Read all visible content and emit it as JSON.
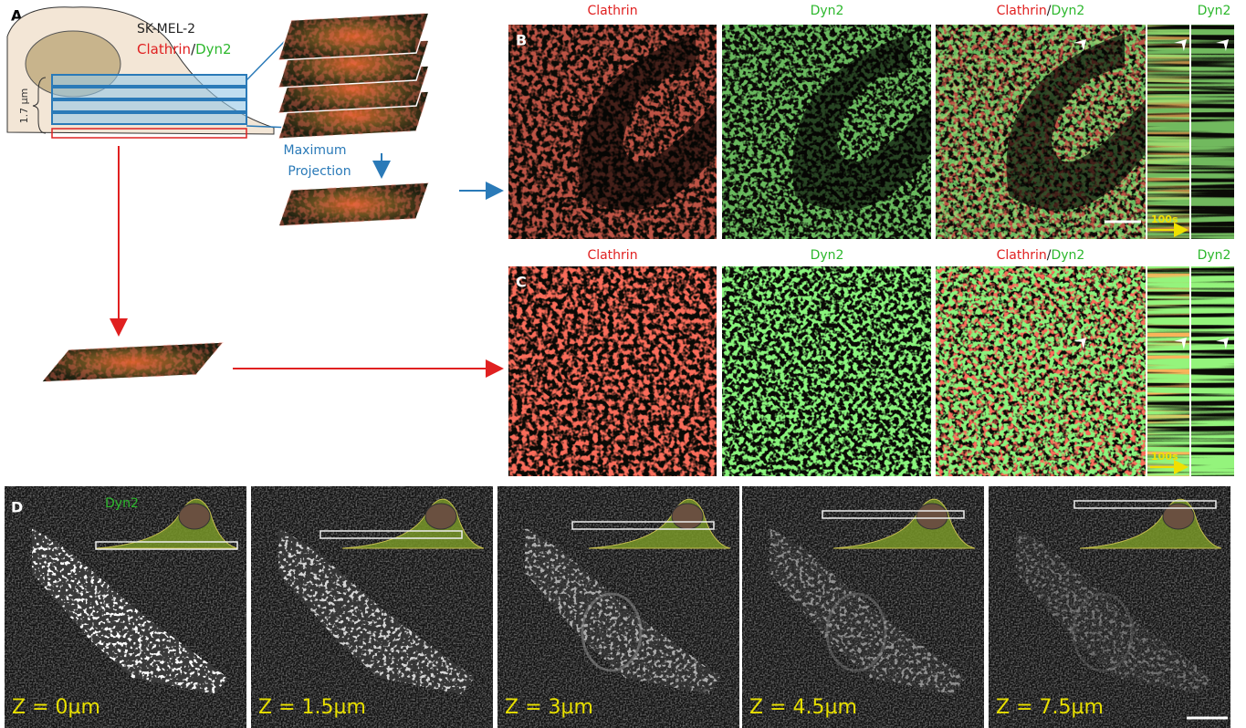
{
  "panel_a": {
    "label": "A",
    "cell_line": "SK-MEL-2",
    "stain": [
      "Clathrin",
      "/",
      "Dyn2"
    ],
    "thickness": "1.7 µm",
    "arrow_label": [
      "Maximum",
      "Projection"
    ]
  },
  "panel_b": {
    "label": "B",
    "columns": [
      "Clathrin",
      "Dyn2",
      [
        "Clathrin",
        "/",
        "Dyn2"
      ],
      "Dyn2"
    ],
    "time_label": "100s"
  },
  "panel_c": {
    "label": "C",
    "columns": [
      "Clathrin",
      "Dyn2",
      [
        "Clathrin",
        "/",
        "Dyn2"
      ],
      "Dyn2"
    ],
    "time_label": "100s"
  },
  "panel_d": {
    "label": "D",
    "stain": "Dyn2",
    "slices": [
      "Z = 0µm",
      "Z = 1.5µm",
      "Z = 3µm",
      "Z = 4.5µm",
      "Z = 7.5µm"
    ]
  }
}
